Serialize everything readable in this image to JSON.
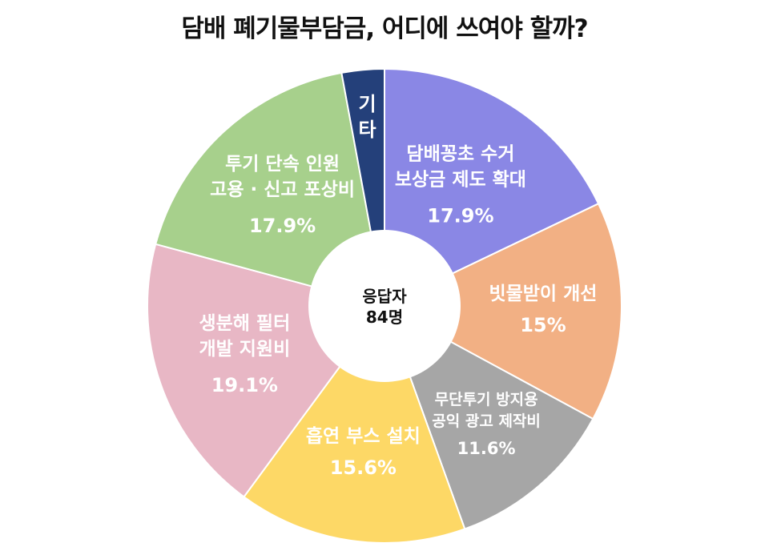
{
  "chart_data": {
    "type": "pie",
    "title": "담배 폐기물부담금, 어디에 쓰여야 할까?",
    "center_label": [
      "응답자",
      "84명"
    ],
    "slices": [
      {
        "lines": [
          "담배꽁초 수거",
          "보상금 제도 확대"
        ],
        "value": 17.9,
        "value_label": "17.9%",
        "color": "#8A87E5"
      },
      {
        "lines": [
          "빗물받이 개선"
        ],
        "value": 15.0,
        "value_label": "15%",
        "color": "#F2B084"
      },
      {
        "lines": [
          "무단투기 방지용",
          "공익 광고 제작비"
        ],
        "value": 11.6,
        "value_label": "11.6%",
        "color": "#A6A6A6"
      },
      {
        "lines": [
          "흡연 부스 설치"
        ],
        "value": 15.6,
        "value_label": "15.6%",
        "color": "#FDD866"
      },
      {
        "lines": [
          "생분해 필터",
          "개발 지원비"
        ],
        "value": 19.1,
        "value_label": "19.1%",
        "color": "#E8B7C5"
      },
      {
        "lines": [
          "투기 단속 인원",
          "고용 · 신고 포상비"
        ],
        "value": 17.9,
        "value_label": "17.9%",
        "color": "#A7D08C"
      },
      {
        "lines": [
          "기",
          "타"
        ],
        "value": 2.9,
        "value_label": "",
        "color": "#24407A"
      }
    ]
  }
}
